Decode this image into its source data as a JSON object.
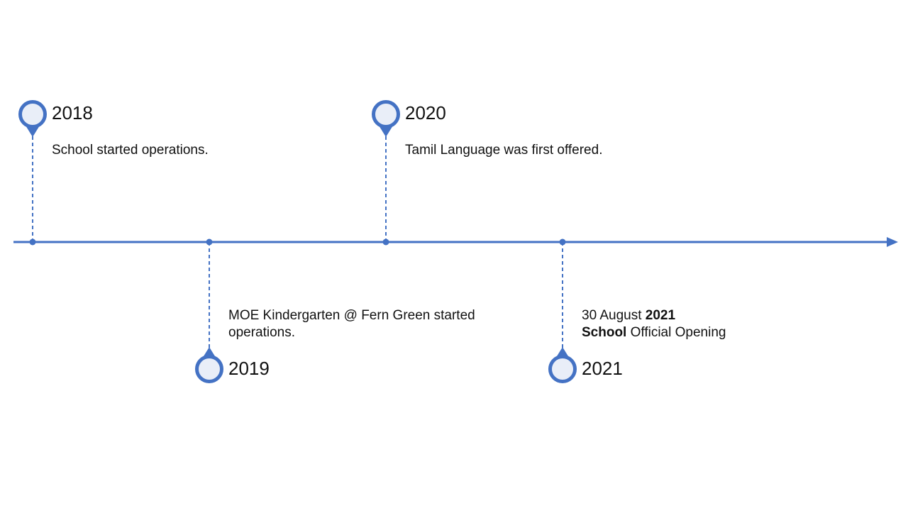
{
  "colors": {
    "accent": "#4472c4",
    "marker_fill": "#e9eef8",
    "text": "#111111",
    "background": "#ffffff"
  },
  "timeline": {
    "events": [
      {
        "year": "2018",
        "description_lines": [
          "School started operations."
        ]
      },
      {
        "year": "2019",
        "description_lines": [
          "MOE Kindergarten @ Fern Green started",
          "operations."
        ]
      },
      {
        "year": "2020",
        "description_lines": [
          "Tamil Language was first offered."
        ]
      },
      {
        "year": "2021",
        "date_prefix": "30 August ",
        "date_year": "2021",
        "title_strong": "School",
        "title_rest": " Official Opening"
      }
    ]
  }
}
